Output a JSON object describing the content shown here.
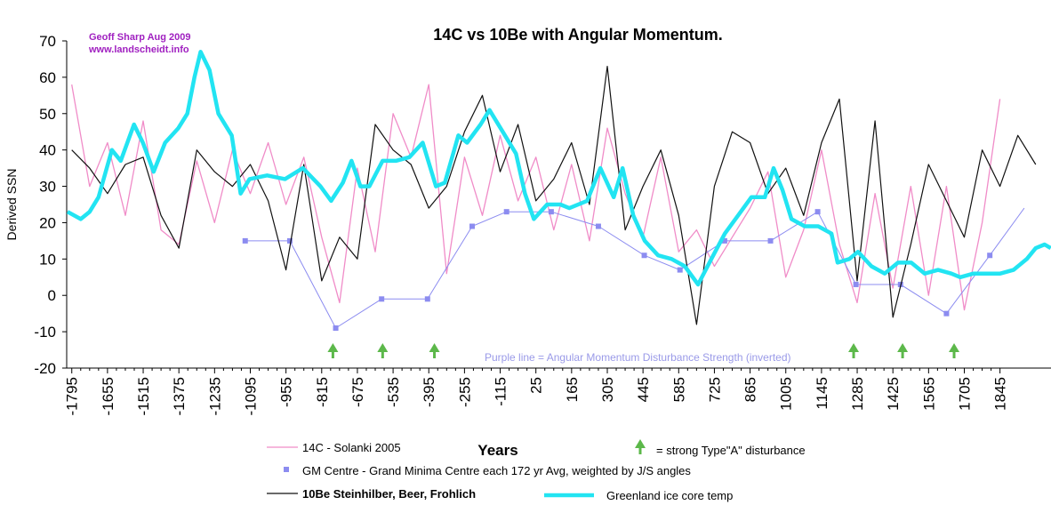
{
  "chart_data": {
    "type": "line",
    "title": "14C vs 10Be with Angular Momentum.",
    "author": "Geoff Sharp Aug 2009",
    "website": "www.landscheidt.info",
    "x_label": "Years",
    "y_label": "Derived SSN",
    "note": "Purple line = Angular Momentum Disturbance Strength (inverted)",
    "xlim": [
      -1815,
      2045
    ],
    "ylim": [
      -20,
      70
    ],
    "xticks": [
      -1795,
      -1655,
      -1515,
      -1375,
      -1235,
      -1095,
      -955,
      -815,
      -675,
      -535,
      -395,
      -255,
      -115,
      25,
      165,
      305,
      445,
      585,
      725,
      865,
      1005,
      1145,
      1285,
      1425,
      1565,
      1705,
      1845
    ],
    "yticks": [
      -20,
      -10,
      0,
      10,
      20,
      30,
      40,
      50,
      60,
      70
    ],
    "disturbances": {
      "label": "= strong Type\"A\" disturbance",
      "color": "#5cb84a",
      "x": [
        -771,
        -576,
        -373,
        1271,
        1463,
        1665
      ]
    },
    "series": [
      {
        "name": "14C  - Solanki 2005",
        "color": "#f08cc8",
        "x": [
          -1795,
          -1725,
          -1655,
          -1585,
          -1515,
          -1445,
          -1375,
          -1305,
          -1235,
          -1165,
          -1095,
          -1025,
          -955,
          -885,
          -815,
          -745,
          -675,
          -605,
          -535,
          -465,
          -395,
          -325,
          -255,
          -185,
          -115,
          -45,
          25,
          95,
          165,
          235,
          305,
          375,
          445,
          515,
          585,
          655,
          725,
          795,
          865,
          935,
          1005,
          1075,
          1145,
          1215,
          1285,
          1355,
          1425,
          1495,
          1565,
          1635,
          1705,
          1775,
          1845,
          1915,
          1985
        ],
        "values": [
          58,
          30,
          42,
          22,
          48,
          18,
          14,
          37,
          20,
          40,
          28,
          42,
          25,
          38,
          16,
          -2,
          35,
          12,
          50,
          38,
          58,
          6,
          38,
          22,
          44,
          26,
          38,
          18,
          36,
          15,
          46,
          28,
          16,
          38,
          12,
          18,
          8,
          16,
          24,
          34,
          5,
          18,
          40,
          14,
          -2,
          28,
          2,
          30,
          0,
          30,
          -4,
          20,
          54,
          null,
          null
        ]
      },
      {
        "name": "GM Centre  - Grand Minima Centre each 172 yr Avg, weighted by  J/S angles",
        "color": "#8c8cf0",
        "marker": "square",
        "x": [
          -1115,
          -940,
          -760,
          -580,
          -400,
          -225,
          -90,
          85,
          270,
          450,
          590,
          765,
          945,
          1130,
          1280,
          1455,
          1635,
          1805,
          1940
        ],
        "values": [
          15,
          15,
          -9,
          -1,
          -1,
          19,
          23,
          23,
          19,
          11,
          7,
          15,
          15,
          23,
          3,
          3,
          -5,
          11,
          24
        ]
      },
      {
        "name": "10Be Steinhilber, Beer, Frohlich",
        "color": "#111111",
        "x": [
          -1795,
          -1725,
          -1655,
          -1585,
          -1515,
          -1445,
          -1375,
          -1305,
          -1235,
          -1165,
          -1095,
          -1025,
          -955,
          -885,
          -815,
          -745,
          -675,
          -605,
          -535,
          -465,
          -395,
          -325,
          -255,
          -185,
          -115,
          -45,
          25,
          95,
          165,
          235,
          305,
          375,
          445,
          515,
          585,
          655,
          725,
          795,
          865,
          935,
          1005,
          1075,
          1145,
          1215,
          1285,
          1355,
          1425,
          1495,
          1565,
          1635,
          1705,
          1775,
          1845,
          1915,
          1985
        ],
        "values": [
          40,
          35,
          28,
          36,
          38,
          22,
          13,
          40,
          34,
          30,
          36,
          26,
          7,
          36,
          4,
          16,
          10,
          47,
          40,
          36,
          24,
          30,
          45,
          55,
          34,
          47,
          26,
          32,
          42,
          25,
          63,
          18,
          30,
          40,
          22,
          -8,
          30,
          45,
          42,
          28,
          35,
          22,
          42,
          54,
          4,
          48,
          -6,
          14,
          36,
          26,
          16,
          40,
          30,
          44,
          36
        ]
      },
      {
        "name": "Greenland ice core temp",
        "color": "#22e4f2",
        "x": [
          -1812,
          -1760,
          -1725,
          -1690,
          -1638,
          -1603,
          -1551,
          -1516,
          -1474,
          -1429,
          -1377,
          -1342,
          -1314,
          -1290,
          -1255,
          -1220,
          -1168,
          -1133,
          -1098,
          -1029,
          -959,
          -889,
          -820,
          -778,
          -732,
          -698,
          -663,
          -628,
          -576,
          -524,
          -471,
          -419,
          -367,
          -332,
          -279,
          -245,
          -192,
          -157,
          -105,
          -53,
          -18,
          17,
          69,
          121,
          156,
          226,
          278,
          330,
          365,
          407,
          452,
          504,
          557,
          609,
          661,
          713,
          766,
          818,
          870,
          923,
          957,
          992,
          1027,
          1079,
          1132,
          1184,
          1208,
          1254,
          1288,
          1341,
          1393,
          1445,
          1497,
          1550,
          1602,
          1654,
          1689,
          1741,
          1794,
          1846,
          1898,
          1950,
          1985,
          2020,
          2044
        ],
        "values": [
          23,
          21,
          23,
          27,
          40,
          37,
          47,
          42,
          34,
          42,
          46,
          50,
          60,
          67,
          62,
          50,
          44,
          28,
          32,
          33,
          32,
          35,
          30,
          26,
          31,
          37,
          30,
          30,
          37,
          37,
          38,
          42,
          30,
          31,
          44,
          42,
          47,
          51,
          45,
          39,
          28,
          21,
          25,
          25,
          24,
          26,
          35,
          27,
          35,
          22,
          15,
          11,
          10,
          8,
          3,
          10,
          17,
          22,
          27,
          27,
          35,
          29,
          21,
          19,
          19,
          17,
          9,
          10,
          12,
          8,
          6,
          9,
          9,
          6,
          7,
          6,
          5,
          6,
          6,
          6,
          7,
          10,
          13,
          14,
          13
        ]
      }
    ]
  }
}
